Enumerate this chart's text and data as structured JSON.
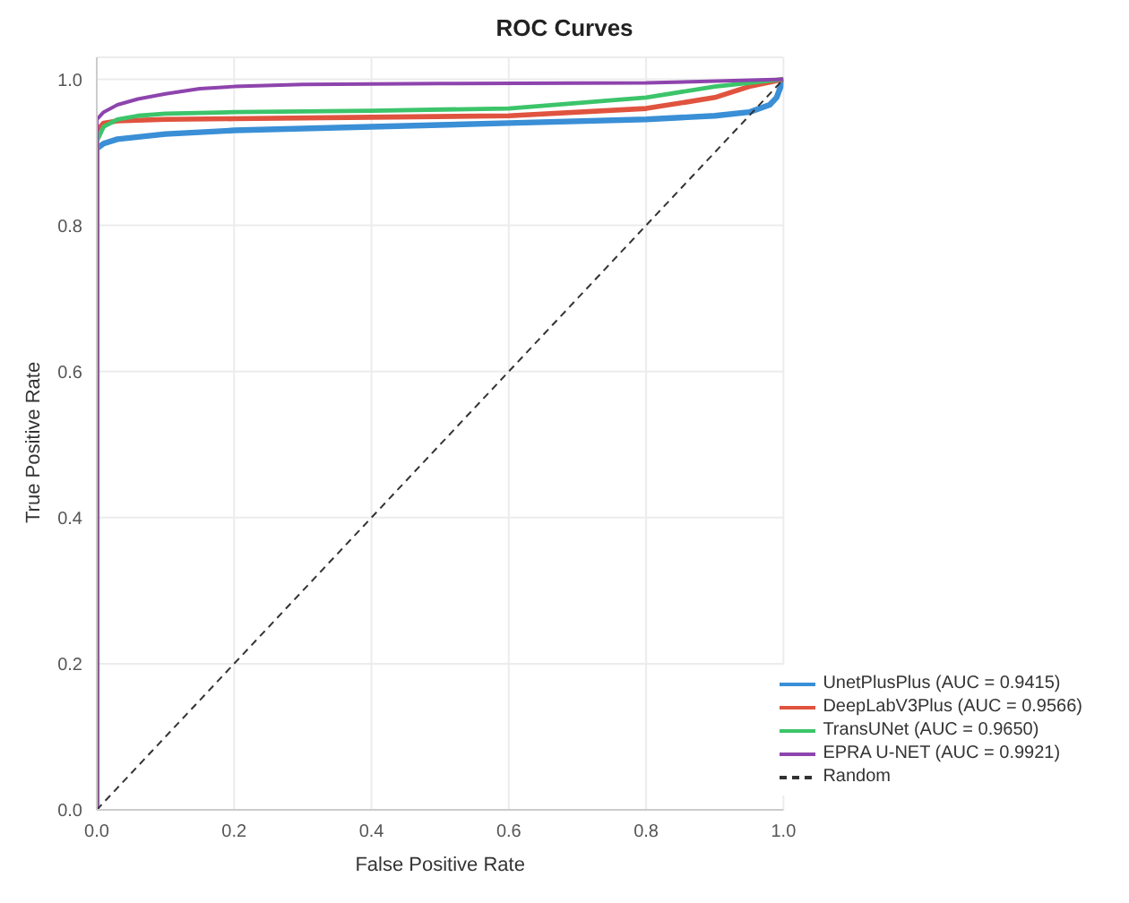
{
  "chart_data": {
    "type": "line",
    "title": "ROC Curves",
    "xlabel": "False Positive Rate",
    "ylabel": "True Positive Rate",
    "xlim": [
      0,
      1
    ],
    "ylim": [
      0,
      1.03
    ],
    "xticks": [
      {
        "value": 0,
        "label": "0.0"
      },
      0.2,
      0.4,
      0.6,
      0.8,
      {
        "value": 1,
        "label": "1.0"
      }
    ],
    "yticks": [
      {
        "value": 0,
        "label": "0.0"
      },
      0.2,
      0.4,
      0.6,
      0.8,
      {
        "value": 1,
        "label": "1.0"
      }
    ],
    "grid": true,
    "legend": "bottom right",
    "marker": "none",
    "line_style": "solid",
    "series": [
      {
        "name": "UnetPlusPlus (AUC = 0.9415)",
        "color": "#3a8fd6",
        "x": [
          0,
          0,
          0.01,
          0.03,
          0.1,
          0.2,
          0.4,
          0.6,
          0.8,
          0.9,
          0.95,
          0.98,
          0.99,
          1
        ],
        "values": [
          0,
          0.905,
          0.912,
          0.918,
          0.925,
          0.93,
          0.935,
          0.94,
          0.945,
          0.95,
          0.955,
          0.965,
          0.975,
          1
        ]
      },
      {
        "name": "DeepLabV3Plus (AUC = 0.9566)",
        "color": "#e0533f",
        "x": [
          0,
          0,
          0.01,
          0.03,
          0.1,
          0.2,
          0.4,
          0.6,
          0.8,
          0.9,
          0.95,
          1
        ],
        "values": [
          0,
          0.93,
          0.94,
          0.943,
          0.945,
          0.946,
          0.948,
          0.95,
          0.96,
          0.975,
          0.99,
          1
        ]
      },
      {
        "name": "TransUNet (AUC = 0.9650)",
        "color": "#3cc46a",
        "x": [
          0,
          0,
          0.01,
          0.03,
          0.06,
          0.1,
          0.2,
          0.4,
          0.6,
          0.8,
          0.9,
          1
        ],
        "values": [
          0,
          0.915,
          0.935,
          0.945,
          0.95,
          0.953,
          0.955,
          0.957,
          0.96,
          0.975,
          0.99,
          1
        ]
      },
      {
        "name": "EPRA U-NET (AUC = 0.9921)",
        "color": "#8e44ad",
        "x": [
          0,
          0,
          0.01,
          0.03,
          0.06,
          0.1,
          0.15,
          0.2,
          0.3,
          0.5,
          0.8,
          1
        ],
        "values": [
          0,
          0.945,
          0.955,
          0.965,
          0.973,
          0.98,
          0.987,
          0.99,
          0.993,
          0.994,
          0.995,
          1
        ]
      },
      {
        "name": "Random",
        "color": "#333333",
        "line_style": "dashed",
        "x": [
          0,
          1
        ],
        "values": [
          0,
          1
        ]
      }
    ]
  }
}
